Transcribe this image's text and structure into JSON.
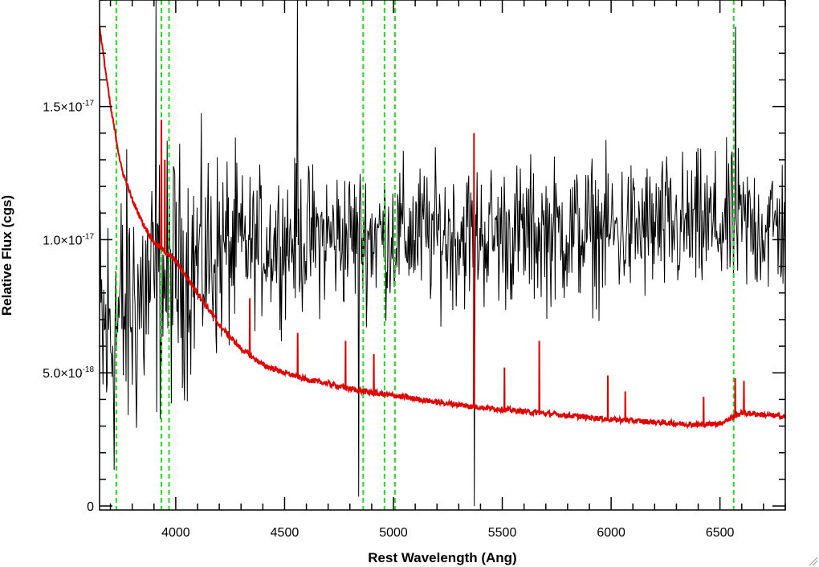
{
  "chart_data": {
    "type": "line",
    "title": "",
    "xlabel": "Rest Wavelength (Ang)",
    "ylabel": "Relative Flux (cgs)",
    "xlim": [
      3650,
      6800
    ],
    "ylim": [
      -1.5e-19,
      1.9e-17
    ],
    "x_ticks": [
      {
        "value": 4000,
        "label": "4000"
      },
      {
        "value": 4500,
        "label": "4500"
      },
      {
        "value": 5000,
        "label": "5000"
      },
      {
        "value": 5500,
        "label": "5500"
      },
      {
        "value": 6000,
        "label": "6000"
      },
      {
        "value": 6500,
        "label": "6500"
      }
    ],
    "y_ticks": [
      {
        "value": 0,
        "mantissa": "0",
        "exponent": ""
      },
      {
        "value": 5e-18,
        "mantissa": "5.0×10",
        "exponent": "-18"
      },
      {
        "value": 1e-17,
        "mantissa": "1.0×10",
        "exponent": "-17"
      },
      {
        "value": 1.5e-17,
        "mantissa": "1.5×10",
        "exponent": "-17"
      }
    ],
    "grid": false,
    "vertical_markers": [
      3727,
      3934,
      3969,
      4861,
      4959,
      5007,
      6563
    ],
    "series": [
      {
        "color": "#000000",
        "style": "noisy spectrum",
        "trend_x": [
          3650,
          3800,
          4000,
          4200,
          4500,
          5000,
          5500,
          6000,
          6500,
          6800
        ],
        "trend_y": [
          6e-18,
          7.5e-18,
          8.8e-18,
          9.5e-18,
          1e-17,
          1.02e-17,
          1.02e-17,
          1.03e-17,
          1.05e-17,
          1.05e-17
        ],
        "spikes": [
          {
            "x": 3910,
            "y": 1.9e-17
          },
          {
            "x": 4560,
            "y": 1.9e-17
          },
          {
            "x": 5370,
            "y": 1.9e-17
          },
          {
            "x": 5370,
            "y": 0.0
          },
          {
            "x": 4840,
            "y": 3.5e-19
          },
          {
            "x": 6570,
            "y": 1.8e-17
          }
        ]
      },
      {
        "color": "#e00000",
        "style": "model continuum",
        "x": [
          3650,
          3700,
          3750,
          3800,
          3850,
          3900,
          4000,
          4100,
          4200,
          4300,
          4400,
          4500,
          4600,
          4700,
          4800,
          4900,
          5000,
          5200,
          5400,
          5600,
          5800,
          6000,
          6200,
          6400,
          6500,
          6600,
          6800
        ],
        "y": [
          1.8e-17,
          1.5e-17,
          1.27e-17,
          1.15e-17,
          1.06e-17,
          9.9e-18,
          9.2e-18,
          8e-18,
          6.8e-18,
          5.9e-18,
          5.3e-18,
          5e-18,
          4.75e-18,
          4.6e-18,
          4.4e-18,
          4.25e-18,
          4.15e-18,
          3.9e-18,
          3.7e-18,
          3.55e-18,
          3.4e-18,
          3.25e-18,
          3.15e-18,
          3.05e-18,
          3.1e-18,
          3.5e-18,
          3.35e-18
        ],
        "emission_lines": [
          {
            "x": 3934,
            "peak": 1.45e-17
          },
          {
            "x": 3950,
            "peak": 1.3e-17
          },
          {
            "x": 4340,
            "peak": 7.8e-18
          },
          {
            "x": 4560,
            "peak": 6.5e-18
          },
          {
            "x": 4780,
            "peak": 6.2e-18
          },
          {
            "x": 4910,
            "peak": 5.7e-18
          },
          {
            "x": 5370,
            "peak": 1.4e-17
          },
          {
            "x": 5510,
            "peak": 5.2e-18
          },
          {
            "x": 5670,
            "peak": 6.2e-18
          },
          {
            "x": 5985,
            "peak": 4.9e-18
          },
          {
            "x": 6065,
            "peak": 4.3e-18
          },
          {
            "x": 6425,
            "peak": 4.1e-18
          },
          {
            "x": 6570,
            "peak": 4.8e-18
          },
          {
            "x": 6610,
            "peak": 4.7e-18
          }
        ]
      }
    ]
  }
}
